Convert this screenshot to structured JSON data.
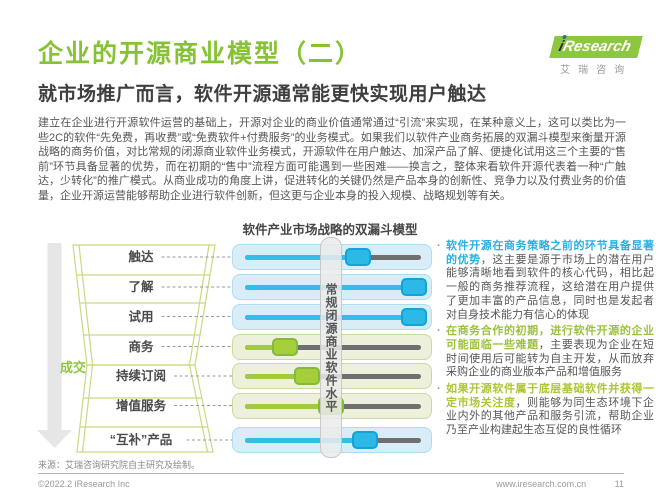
{
  "header": {
    "title": "企业的开源商业模型（二）",
    "subtitle": "就市场推广而言，软件开源通常能更快实现用户触达",
    "logo": {
      "brand_i": "i",
      "brand_rest": "Research",
      "subtext": "艾瑞咨询"
    }
  },
  "intro": "建立在企业进行开源软件运营的基础上，开源对企业的商业价值通常通过“引流”来实现，在某种意义上，这可以类比为一些2C的软件“先免费，再收费”或“免费软件+付费服务”的业务模式。如果我们以软件产业商务拓展的双漏斗模型来衡量开源战略的商务价值，对比常规的闭源商业软件业务模式，开源软件在用户触达、加深产品了解、便捷化试用这三个主要的“售前”环节具备显著的优势，而在初期的“售中”流程方面可能遇到一些困难——换言之，整体来看软件开源代表着一种“广触达，少转化”的推广模式。从商业成功的角度上讲，促进转化的关键仍然是产品本身的创新性、竞争力以及付费业务的价值量，企业开源运营能够帮助企业进行软件创新，但这更与企业本身的投入规模、战略规划等有关。",
  "diagram": {
    "title": "软件产业市场战略的双漏斗模型",
    "center_axis_label": "常规闭源商业软件水平",
    "deal_label": "成交",
    "rows": [
      {
        "label": "触达",
        "group": "blue",
        "knob_pos": 0.64
      },
      {
        "label": "了解",
        "group": "blue",
        "knob_pos": 0.96
      },
      {
        "label": "试用",
        "group": "blue",
        "knob_pos": 0.96
      },
      {
        "label": "商务",
        "group": "green",
        "knob_pos": 0.23
      },
      {
        "label": "持续订阅",
        "group": "green",
        "knob_pos": 0.35
      },
      {
        "label": "增值服务",
        "group": "green",
        "knob_pos": 0.49
      },
      {
        "label": "“互补”产品",
        "group": "blue",
        "knob_pos": 0.68
      }
    ],
    "colors": {
      "blue_knob": "#2cb9e6",
      "blue_track": "#35bde9",
      "blue_bg": "#d8edf7",
      "green_knob": "#a4cf39",
      "green_track": "#a2ca3e",
      "green_bg": "#edf0da",
      "gray_track": "#6f6f6f",
      "funnel_stroke": "#c8da80",
      "accent_green": "#8cc63e"
    }
  },
  "insights": [
    {
      "lead": "软件开源在商务策略之前的环节具备显著的优势",
      "body": "，这主要是源于市场上的潜在用户能够清晰地看到软件的核心代码，相比起一般的商务推荐流程，这给潜在用户提供了更加丰富的产品信息，同时也是发起者对自身技术能力有信心的体现",
      "lead_color": "#29b0e2"
    },
    {
      "lead": "在商务合作的初期，进行软件开源的企业可能面临一些难题",
      "body": "，主要表现为企业在短时间使用后可能转为自主开发，从而放弃采购企业的商业版本产品和增值服务",
      "lead_color": "#9cc23c"
    },
    {
      "lead": "如果开源软件属于底层基础软件并获得一定市场关注度",
      "body": "，则能够为同生态环境下企业内外的其他产品和服务引流，帮助企业乃至产业构建起生态互促的良性循环",
      "lead_color": "#adc636"
    }
  ],
  "footer": {
    "source": "来源：艾瑞咨询研究院自主研究及绘制。",
    "copyright": "©2022.2 iResearch Inc",
    "website": "www.iresearch.com.cn",
    "page": "11"
  }
}
